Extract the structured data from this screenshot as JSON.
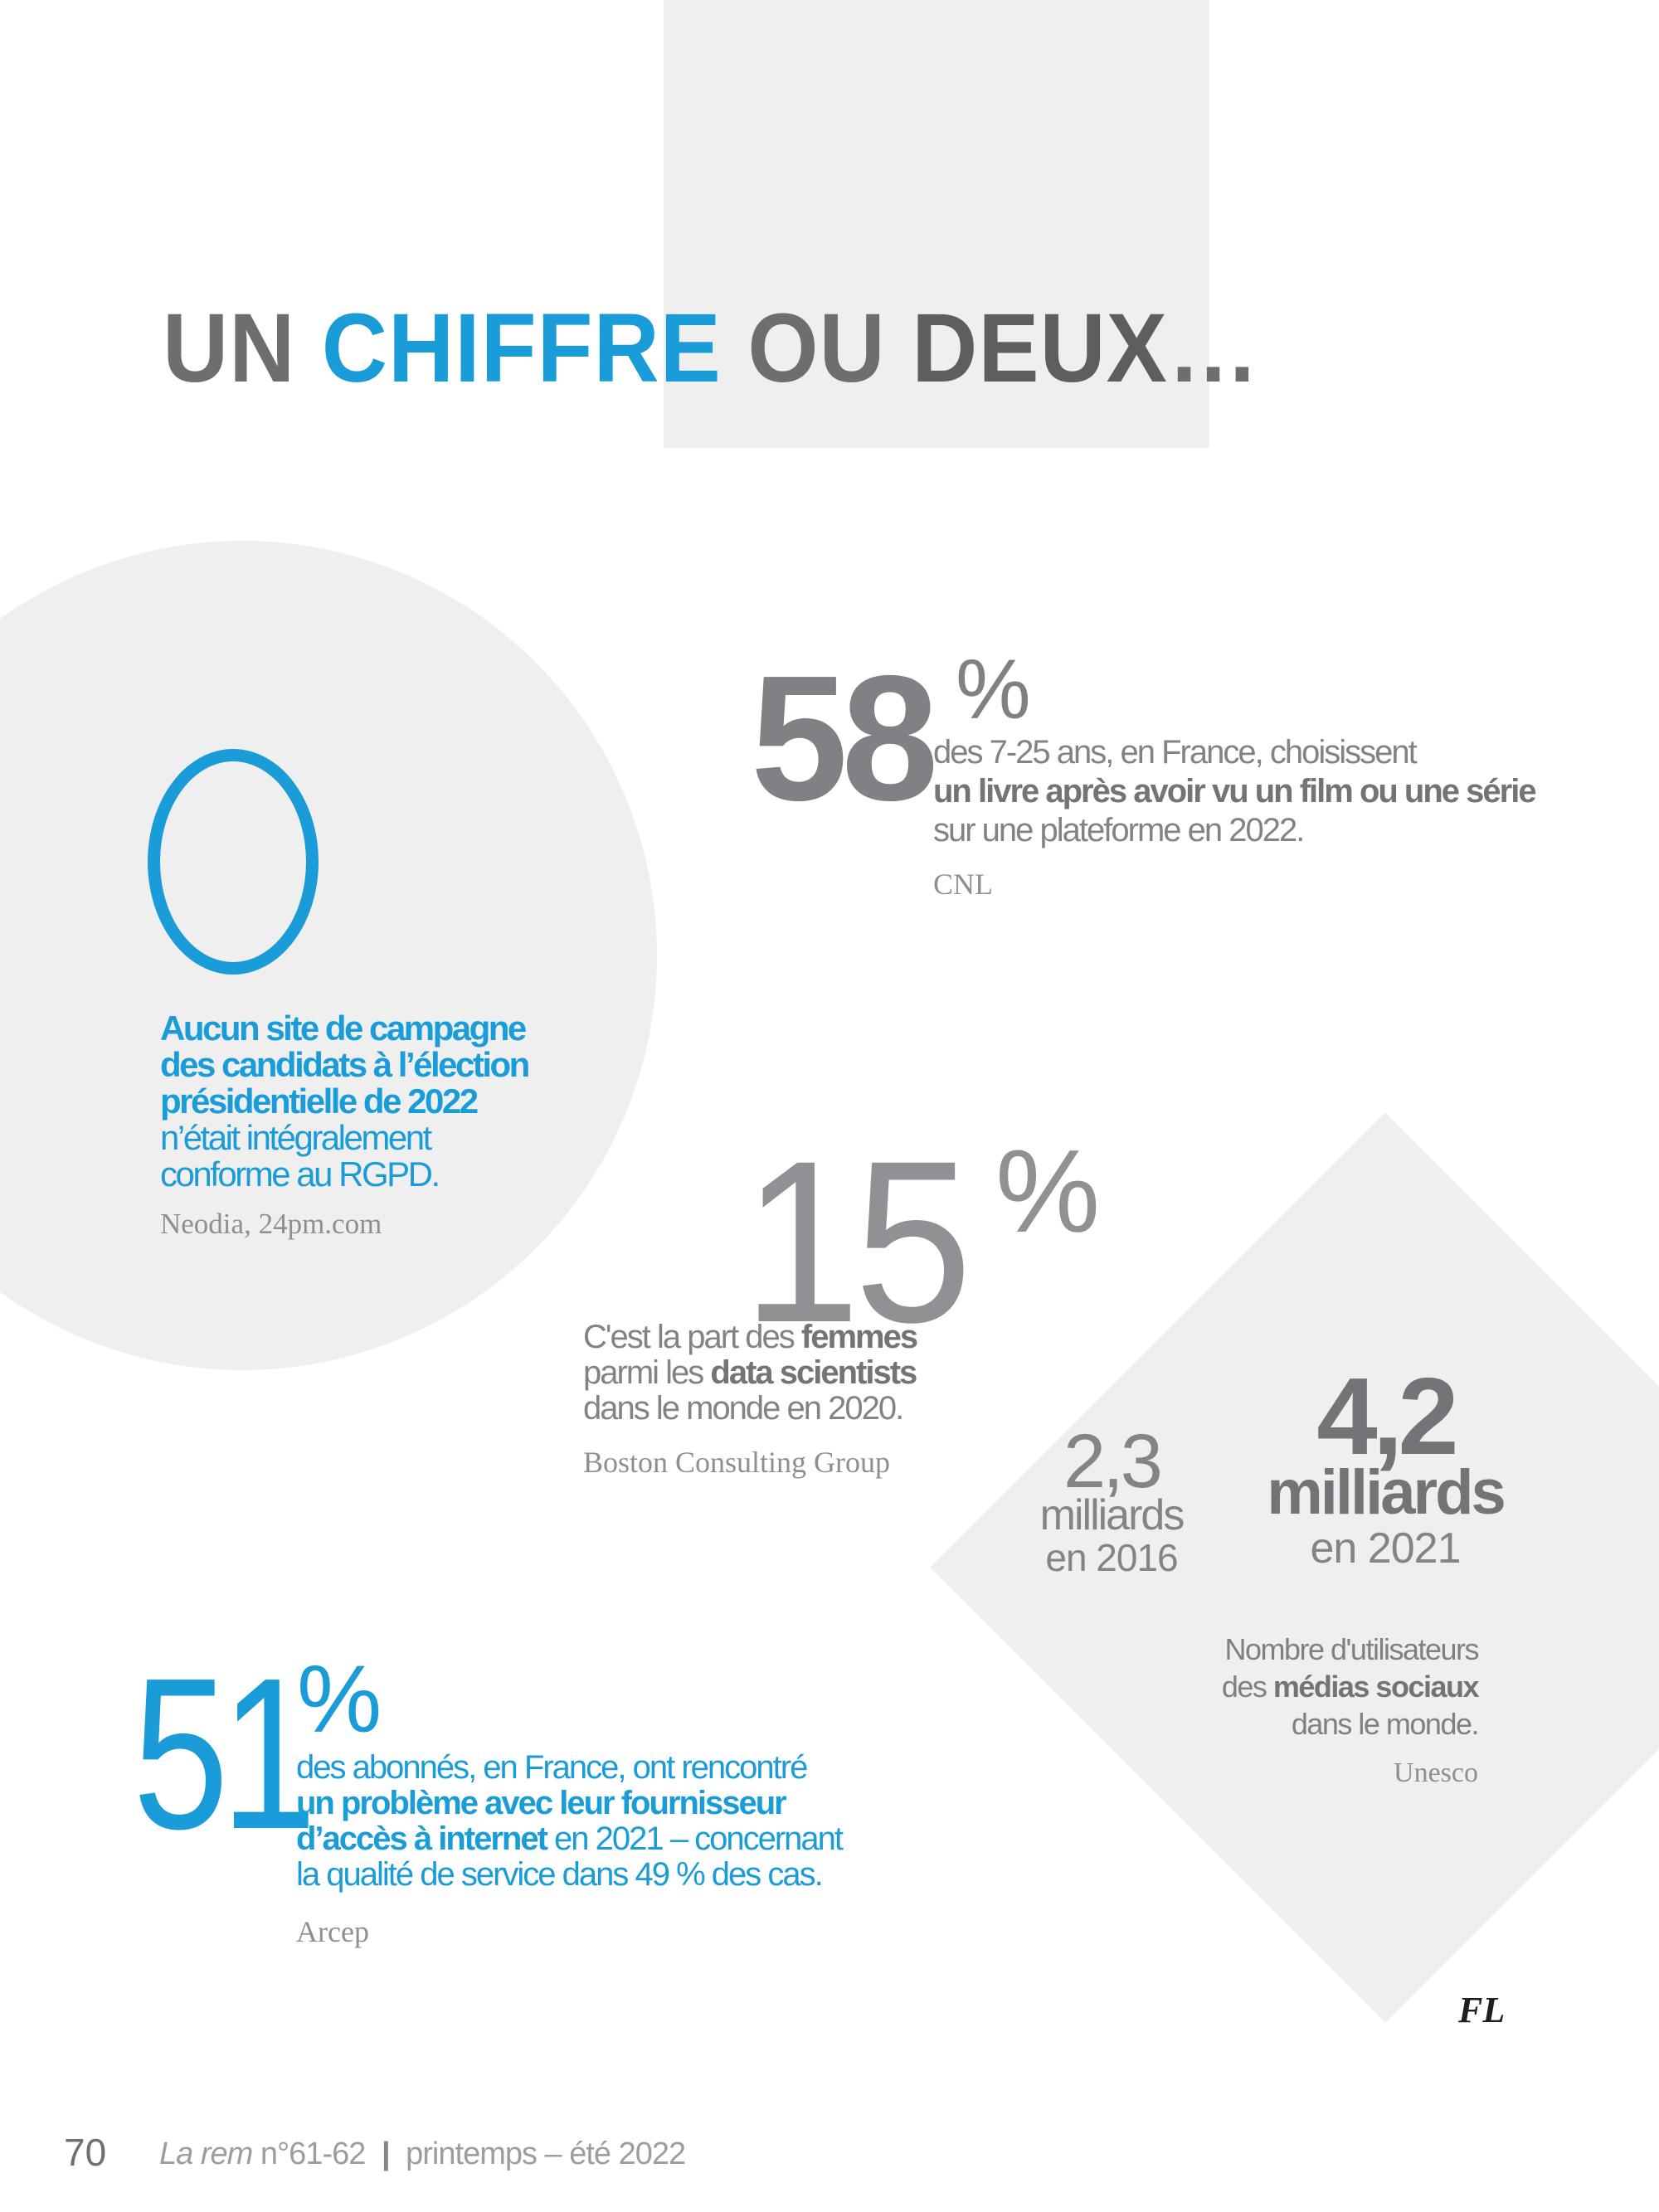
{
  "colors": {
    "accent_blue": "#1a9cd8",
    "shape_gray": "#efeff0",
    "body_gray": "#818386",
    "source_gray": "#8d8f92",
    "signature_black": "#221e1f"
  },
  "title": {
    "part1": "UN",
    "part2": "CHIFFRE",
    "part3": "OU",
    "part4": "DEUX",
    "ellipsis": "…"
  },
  "stat_zero": {
    "value": "0",
    "line1": "Aucun site de campagne",
    "line2": "des candidats à l’élection",
    "line3": "présidentielle de 2022",
    "line4": "n’était intégralement",
    "line5": "conforme au RGPD.",
    "source": "Neodia, 24pm.com"
  },
  "stat_58": {
    "value": "58",
    "unit": "%",
    "line1": "des 7-25 ans, en France, choisissent",
    "line2": "un livre après avoir vu un film ou une série",
    "line3": "sur une plateforme en 2022.",
    "source": "CNL"
  },
  "stat_15": {
    "value": "15",
    "unit": "%",
    "line1_pre": "C'est la part des ",
    "line1_bold": "femmes",
    "line2_pre": "parmi les ",
    "line2_bold": "data scientists",
    "line3": "dans le monde en 2020.",
    "source": "Boston Consulting Group"
  },
  "stat_social": {
    "value_2016": "2,3",
    "label_2016_line1": "milliards",
    "label_2016_line2": "en 2016",
    "value_2021": "4,2",
    "label_2021_line1": "milliards",
    "label_2021_line2": "en 2021",
    "caption_line1": "Nombre d'utilisateurs",
    "caption_line2_pre": "des ",
    "caption_line2_bold": "médias sociaux",
    "caption_line3": "dans le monde.",
    "source": "Unesco"
  },
  "stat_51": {
    "value": "51",
    "unit": "%",
    "line1": "des abonnés, en France, ont rencontré",
    "line2": "un problème avec leur fournisseur",
    "line3_bold": "d’accès à internet",
    "line3_rest": " en 2021 – concernant",
    "line4": "la qualité de service dans 49 % des cas.",
    "source": "Arcep"
  },
  "signature": "FL",
  "footer": {
    "page_number": "70",
    "journal_title": "La rem",
    "issue": "n°61-62",
    "separator": "|",
    "season": "printemps – été 2022"
  }
}
